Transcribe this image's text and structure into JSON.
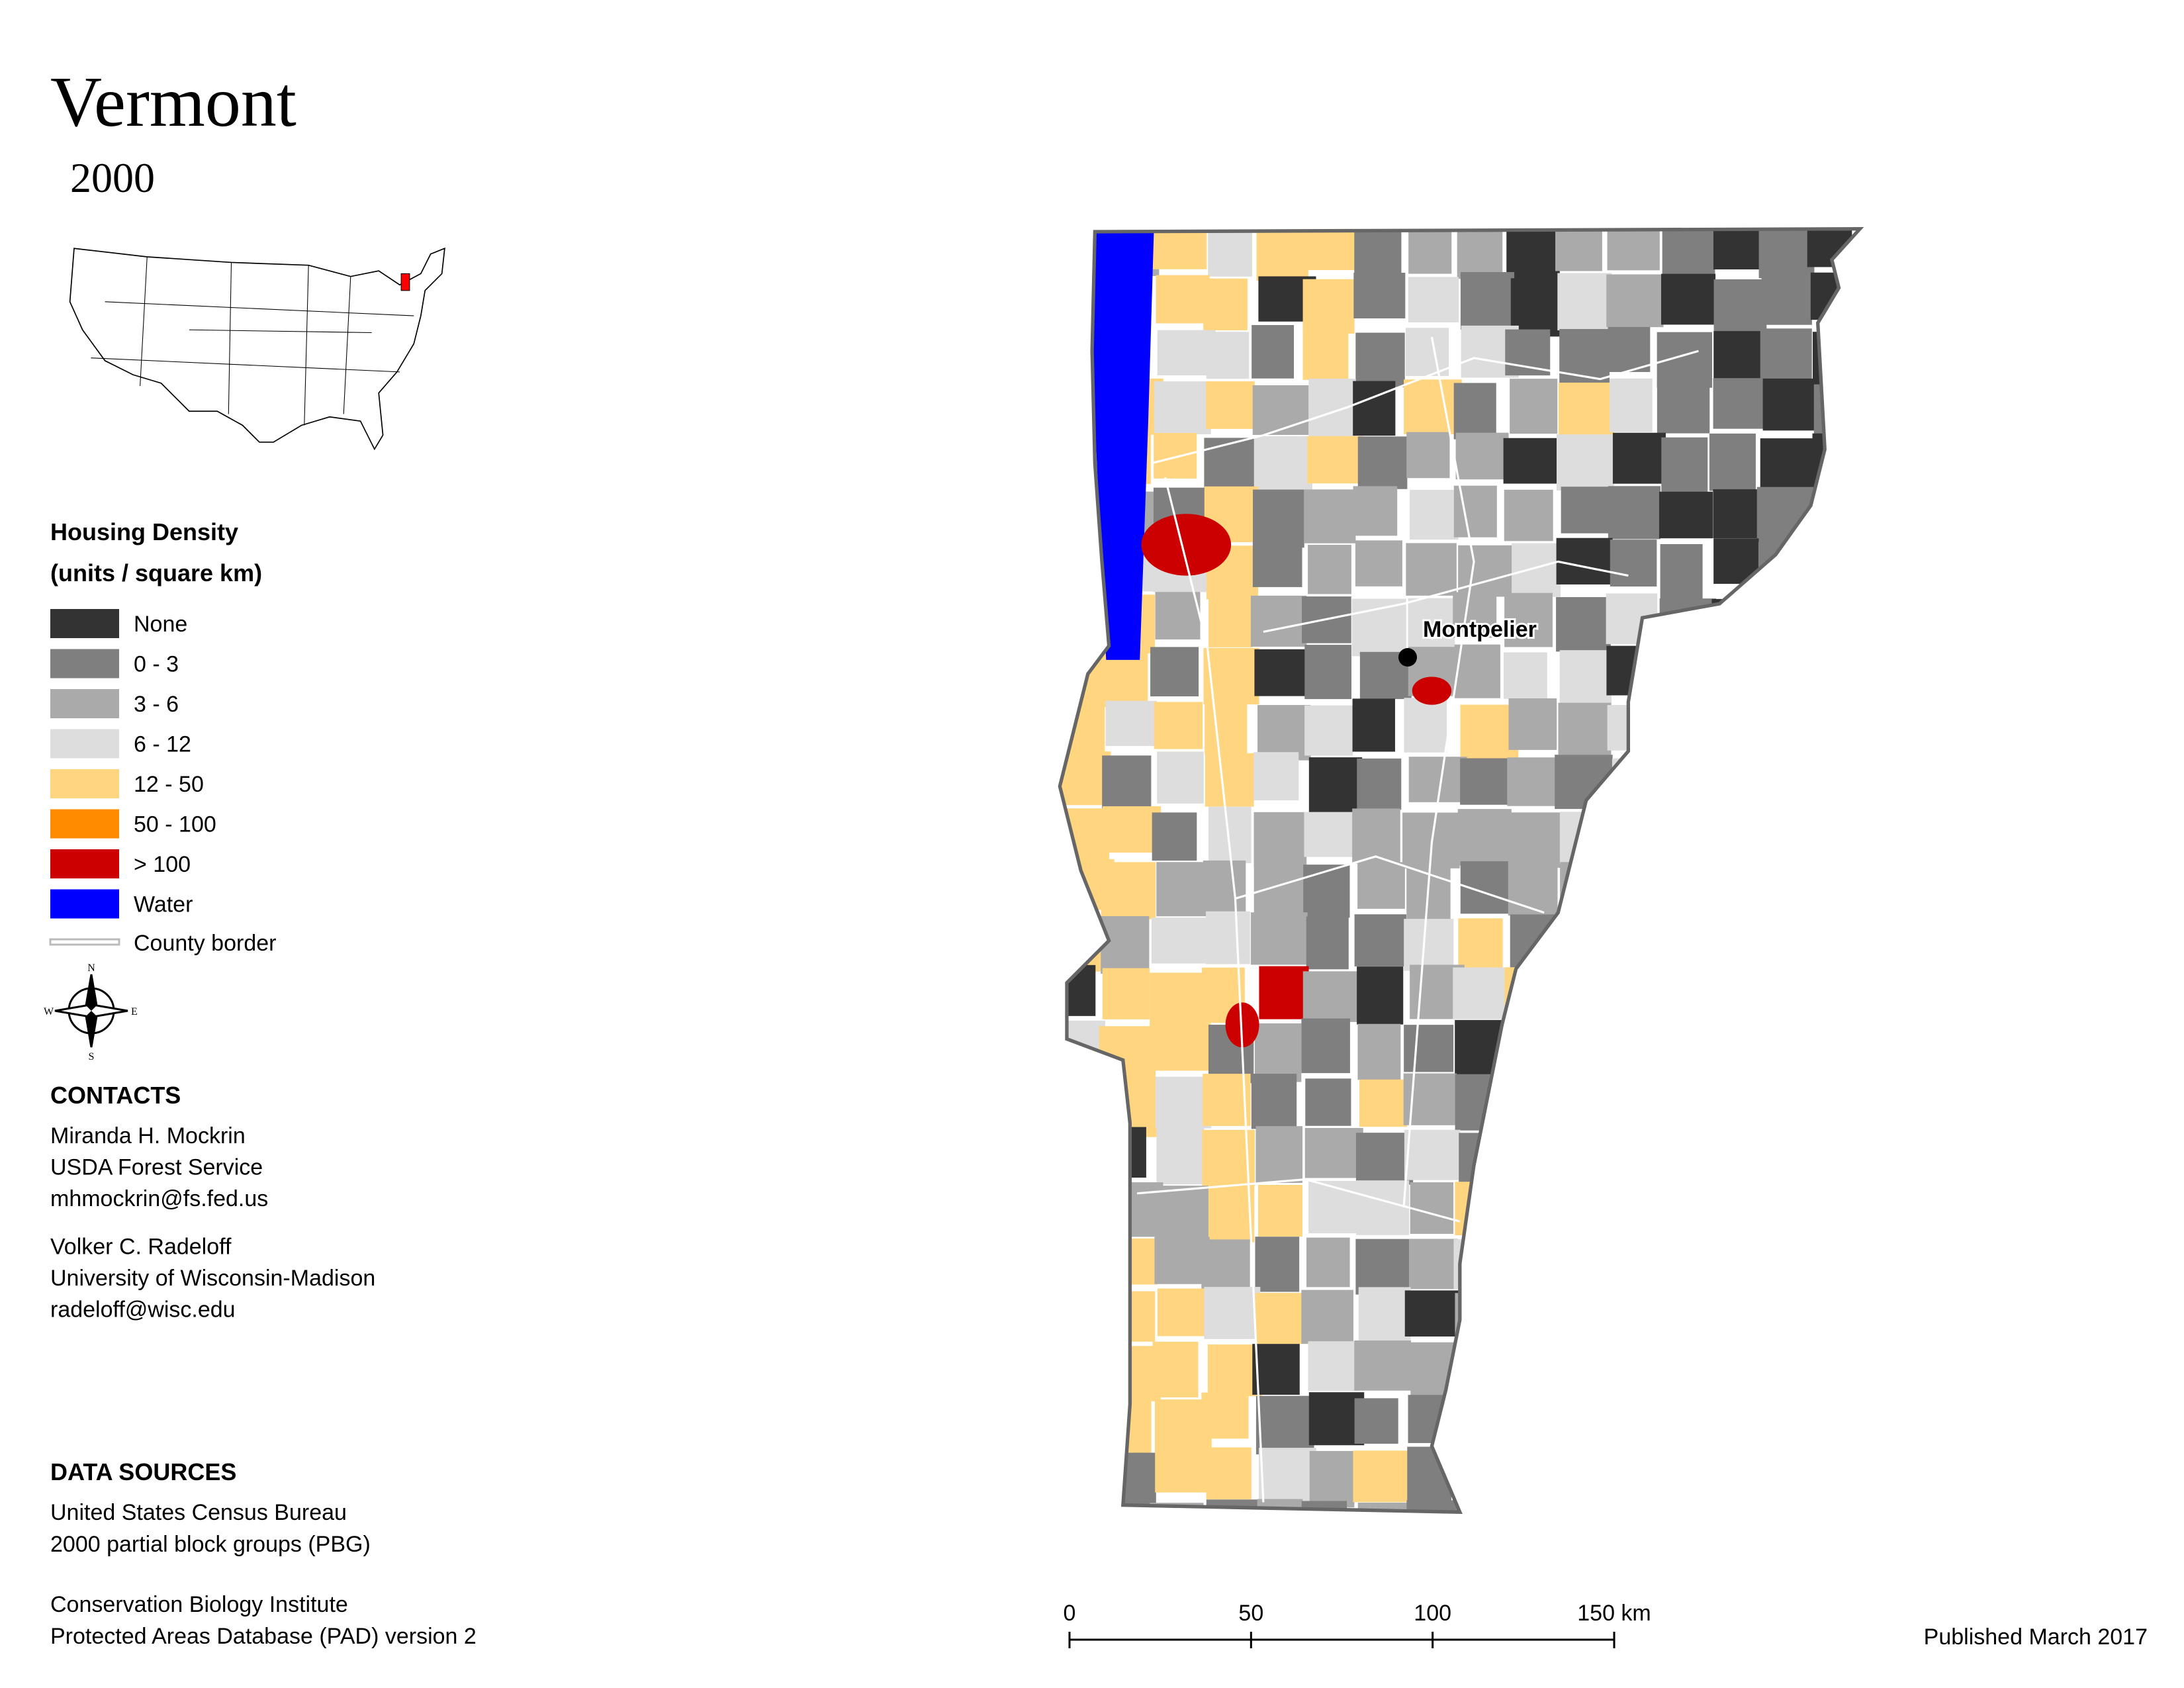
{
  "title": "Vermont",
  "subtitle": "2000",
  "legend": {
    "title": "Housing Density",
    "subtitle": "(units / square km)",
    "items": [
      {
        "label": "None",
        "color": "#333333"
      },
      {
        "label": "0 - 3",
        "color": "#7f7f7f"
      },
      {
        "label": "3 - 6",
        "color": "#aaaaaa"
      },
      {
        "label": "6 - 12",
        "color": "#dddddd"
      },
      {
        "label": "12 - 50",
        "color": "#ffd580"
      },
      {
        "label": "50 - 100",
        "color": "#ff8c00"
      },
      {
        "label": "> 100",
        "color": "#cc0000"
      },
      {
        "label": "Water",
        "color": "#0000ff"
      }
    ],
    "county_border": "County border"
  },
  "compass": [
    "N",
    "E",
    "S",
    "W"
  ],
  "contacts": {
    "heading": "CONTACTS",
    "people": [
      [
        "Miranda H. Mockrin",
        "USDA Forest Service",
        "mhmockrin@fs.fed.us"
      ],
      [
        "Volker C. Radeloff",
        "University of Wisconsin-Madison",
        "radeloff@wisc.edu"
      ]
    ]
  },
  "data_sources": {
    "heading": "DATA SOURCES",
    "entries": [
      [
        "United States Census Bureau",
        "2000 partial block groups (PBG)"
      ],
      [
        "Conservation Biology Institute",
        "Protected Areas Database (PAD) version 2"
      ]
    ]
  },
  "city": "Montpelier",
  "scale_bar": {
    "ticks": [
      0,
      50,
      100,
      {
        "value": 150,
        "label": "150 km"
      }
    ]
  },
  "published": "Published March 2017"
}
